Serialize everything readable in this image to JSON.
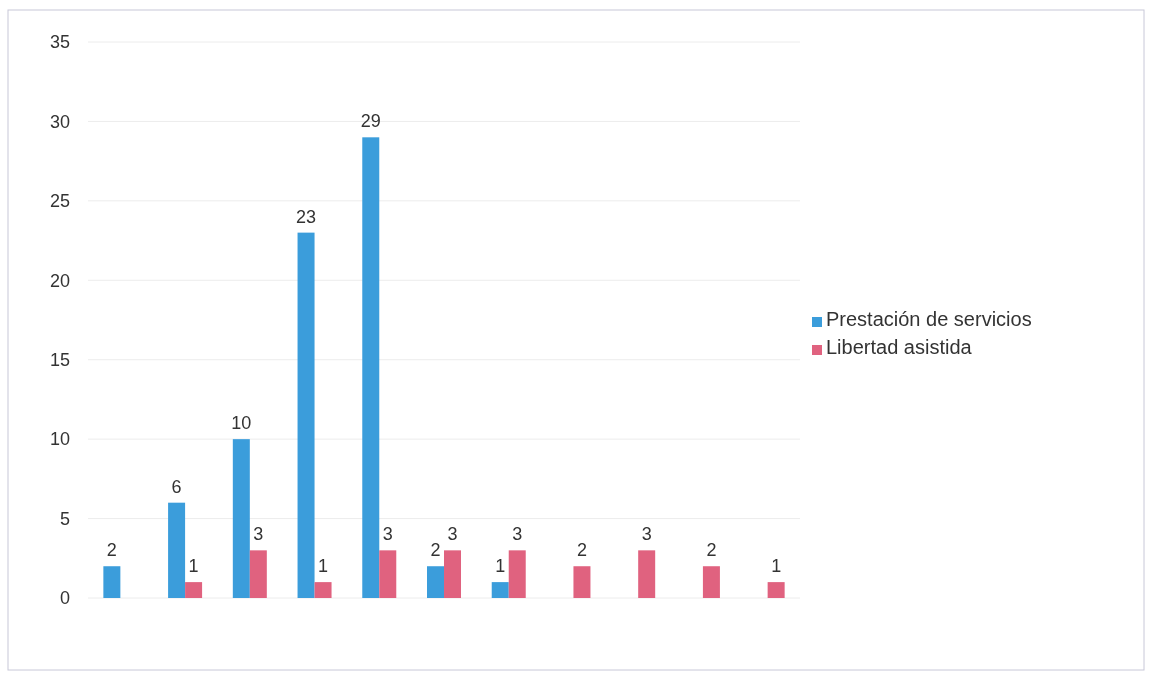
{
  "chart_data": {
    "type": "bar",
    "categories": [
      null,
      null,
      null,
      null,
      null,
      null,
      null,
      null,
      null,
      null,
      null
    ],
    "series": [
      {
        "name": "Prestación de servicios",
        "color": "#3b9ddb",
        "values": [
          2,
          6,
          10,
          23,
          29,
          2,
          1,
          null,
          null,
          null,
          null
        ]
      },
      {
        "name": "Libertad asistida",
        "color": "#e0627f",
        "values": [
          null,
          1,
          3,
          1,
          3,
          3,
          3,
          2,
          3,
          2,
          1
        ]
      }
    ],
    "ylim": [
      0,
      35
    ],
    "yticks": [
      0,
      5,
      10,
      15,
      20,
      25,
      30,
      35
    ],
    "grid": "y",
    "legend": "right",
    "data_labels": true
  }
}
